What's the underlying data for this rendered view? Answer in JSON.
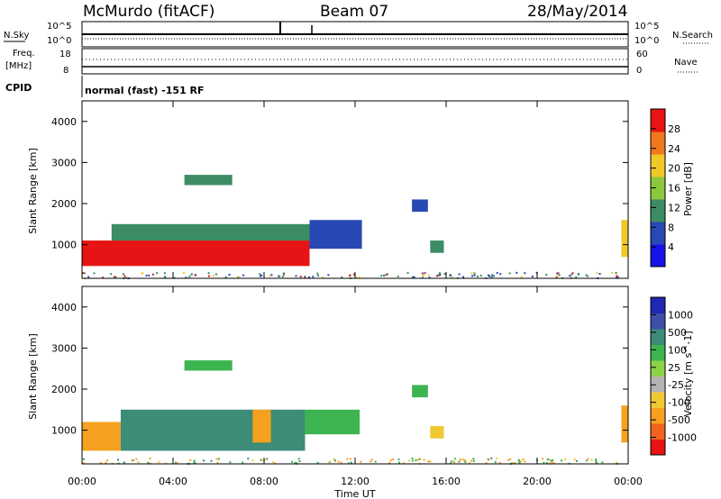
{
  "header": {
    "station": "McMurdo (fitACF)",
    "beam": "Beam 07",
    "date": "28/May/2014"
  },
  "top_panels": {
    "nsky_label": "N.Sky",
    "nsearch_label": "N.Search",
    "noise_ticks": [
      "10^5",
      "10^0"
    ],
    "freq_label": "Freq.",
    "freq_unit": "[MHz]",
    "freq_ticks": [
      "18",
      "8"
    ],
    "nave_label": "Nave",
    "nave_ticks": [
      "60",
      "0"
    ],
    "cpid_label": "CPID",
    "cpid_text": "normal (fast) -151 RF"
  },
  "colors": {
    "power_scale": [
      "#1414e6",
      "#2848b4",
      "#3c8c64",
      "#8cc83c",
      "#f0c828",
      "#f0781e",
      "#e61414"
    ],
    "velocity_scale": [
      "#e61414",
      "#f0641e",
      "#f5a01e",
      "#f0c832",
      "#b4b4b4",
      "#8cd246",
      "#3cb450",
      "#3c8c78",
      "#3c50aa",
      "#1e28b4"
    ]
  },
  "chart_data": [
    {
      "type": "heatmap",
      "name": "power-panel",
      "xlabel": "Time UT",
      "ylabel": "Slant Range [km]",
      "x_range": [
        "00:00",
        "24:00"
      ],
      "ylim": [
        180,
        4500
      ],
      "x_ticks": [
        "00:00",
        "04:00",
        "08:00",
        "12:00",
        "16:00",
        "20:00",
        "00:00"
      ],
      "y_ticks": [
        "1000",
        "2000",
        "3000",
        "4000"
      ],
      "colorbar": {
        "label": "Power [dB]",
        "ticks": [
          "4",
          "8",
          "12",
          "16",
          "20",
          "24",
          "28"
        ],
        "range": [
          0,
          30
        ]
      },
      "regions": [
        {
          "from_h": 0.0,
          "to_h": 10.0,
          "range_km": [
            480,
            1100
          ],
          "value_db": 28
        },
        {
          "from_h": 1.3,
          "to_h": 10.2,
          "range_km": [
            1100,
            1500
          ],
          "value_db": 12
        },
        {
          "from_h": 10.0,
          "to_h": 12.3,
          "range_km": [
            900,
            1600
          ],
          "value_db": 6
        },
        {
          "from_h": 4.5,
          "to_h": 6.6,
          "range_km": [
            2450,
            2700
          ],
          "value_db": 12
        },
        {
          "from_h": 14.5,
          "to_h": 15.2,
          "range_km": [
            1800,
            2100
          ],
          "value_db": 6
        },
        {
          "from_h": 15.3,
          "to_h": 15.9,
          "range_km": [
            800,
            1100
          ],
          "value_db": 12
        },
        {
          "from_h": 23.7,
          "to_h": 24.0,
          "range_km": [
            700,
            1600
          ],
          "value_db": 20
        }
      ]
    },
    {
      "type": "heatmap",
      "name": "velocity-panel",
      "xlabel": "Time UT",
      "ylabel": "Slant Range [km]",
      "x_range": [
        "00:00",
        "24:00"
      ],
      "ylim": [
        180,
        4500
      ],
      "x_ticks": [
        "00:00",
        "04:00",
        "08:00",
        "12:00",
        "16:00",
        "20:00",
        "00:00"
      ],
      "y_ticks": [
        "1000",
        "2000",
        "3000",
        "4000"
      ],
      "colorbar": {
        "label": "Velocity [m s^-1]",
        "ticks": [
          "-1000",
          "-500",
          "-100",
          "-25",
          "25",
          "100",
          "500",
          "1000"
        ],
        "range": [
          -1200,
          1200
        ]
      },
      "regions": [
        {
          "from_h": 0.0,
          "to_h": 1.7,
          "range_km": [
            500,
            1200
          ],
          "value_ms": -300
        },
        {
          "from_h": 1.7,
          "to_h": 9.8,
          "range_km": [
            500,
            1500
          ],
          "value_ms": 150
        },
        {
          "from_h": 7.5,
          "to_h": 8.3,
          "range_km": [
            700,
            1500
          ],
          "value_ms": -300
        },
        {
          "from_h": 9.8,
          "to_h": 12.2,
          "range_km": [
            900,
            1500
          ],
          "value_ms": 80
        },
        {
          "from_h": 4.5,
          "to_h": 6.6,
          "range_km": [
            2450,
            2700
          ],
          "value_ms": 60
        },
        {
          "from_h": 14.5,
          "to_h": 15.2,
          "range_km": [
            1800,
            2100
          ],
          "value_ms": 40
        },
        {
          "from_h": 15.3,
          "to_h": 15.9,
          "range_km": [
            800,
            1100
          ],
          "value_ms": -60
        },
        {
          "from_h": 23.7,
          "to_h": 24.0,
          "range_km": [
            700,
            1600
          ],
          "value_ms": -300
        }
      ]
    }
  ]
}
